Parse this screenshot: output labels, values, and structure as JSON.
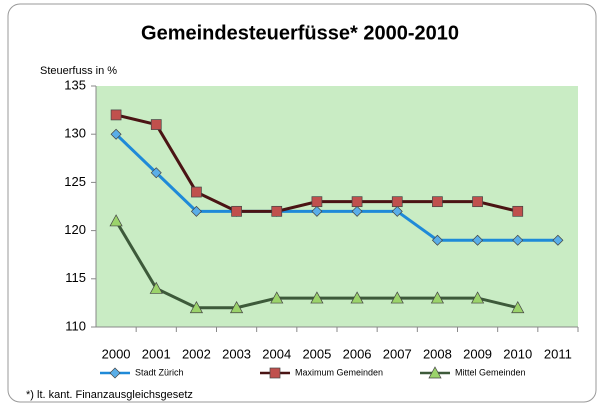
{
  "chart_data": {
    "type": "line",
    "title": "Gemeindesteuerfüsse* 2000-2010",
    "y_label": "Steuerfuss in %",
    "footnote": "*) lt. kant. Finanzausgleichsgesetz",
    "categories": [
      "2000",
      "2001",
      "2002",
      "2003",
      "2004",
      "2005",
      "2006",
      "2007",
      "2008",
      "2009",
      "2010",
      "2011"
    ],
    "series": [
      {
        "name": "Stadt Zürich",
        "color": "#1f8ad8",
        "marker": "diamond",
        "values": [
          130,
          126,
          122,
          122,
          122,
          122,
          122,
          122,
          119,
          119,
          119,
          119
        ]
      },
      {
        "name": "Maximum Gemeinden",
        "color": "#4a1414",
        "marker": "square",
        "values": [
          132,
          131,
          124,
          122,
          122,
          123,
          123,
          123,
          123,
          123,
          122,
          null
        ]
      },
      {
        "name": "Mittel Gemeinden",
        "color": "#3d5a3a",
        "marker": "triangle",
        "values": [
          121,
          114,
          112,
          112,
          113,
          113,
          113,
          113,
          113,
          113,
          112,
          null
        ]
      }
    ],
    "ylim": [
      110,
      135
    ],
    "yticks": [
      110,
      115,
      120,
      125,
      130,
      135
    ],
    "plot_color": "#c9ecc4",
    "legend": "bottom"
  }
}
